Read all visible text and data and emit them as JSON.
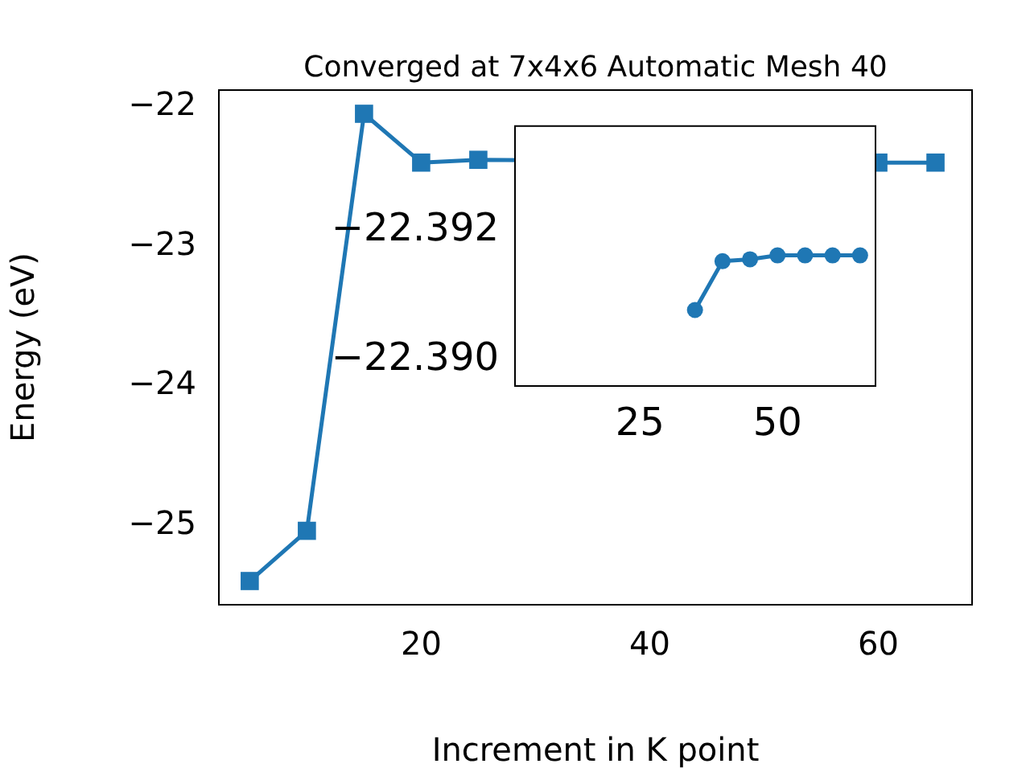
{
  "chart_data": [
    {
      "type": "line",
      "title": "Converged at 7x4x6 Automatic Mesh 40",
      "xlabel": "Increment in K point",
      "ylabel": "Energy (eV)",
      "x": [
        5,
        10,
        15,
        20,
        25,
        30,
        35,
        40,
        45,
        50,
        55,
        60,
        65
      ],
      "series": [
        {
          "color": "#1f77b4",
          "values": [
            -25.4,
            -25.04,
            -22.05,
            -22.4,
            -22.38,
            null,
            null,
            null,
            null,
            null,
            null,
            -22.4,
            -22.4
          ]
        }
      ],
      "xlim": [
        2.3,
        68.2
      ],
      "ylim": [
        -25.57,
        -21.88
      ],
      "xticks": [
        20,
        40,
        60
      ],
      "yticks": [
        {
          "value": -25,
          "label": "−25"
        },
        {
          "value": -24,
          "label": "−24"
        },
        {
          "value": -23,
          "label": "−23"
        },
        {
          "value": -22,
          "label": "−22"
        }
      ],
      "marker": "square",
      "grid": false,
      "legend": false
    },
    {
      "type": "line",
      "x": [
        35,
        40,
        45,
        50,
        55,
        60,
        65
      ],
      "series": [
        {
          "color": "#1f77b4",
          "values": [
            -22.39077,
            -22.39152,
            -22.39155,
            -22.39161,
            -22.39161,
            -22.39161,
            -22.39161
          ]
        }
      ],
      "xlim": [
        2.3,
        67.8
      ],
      "ylim": [
        -22.3896,
        -22.3936
      ],
      "xticks": [
        25,
        50
      ],
      "yticks": [
        {
          "value": -22.392,
          "label": "−22.392"
        },
        {
          "value": -22.39,
          "label": "−22.390"
        }
      ],
      "marker": "circle",
      "grid": false,
      "legend": false
    }
  ]
}
